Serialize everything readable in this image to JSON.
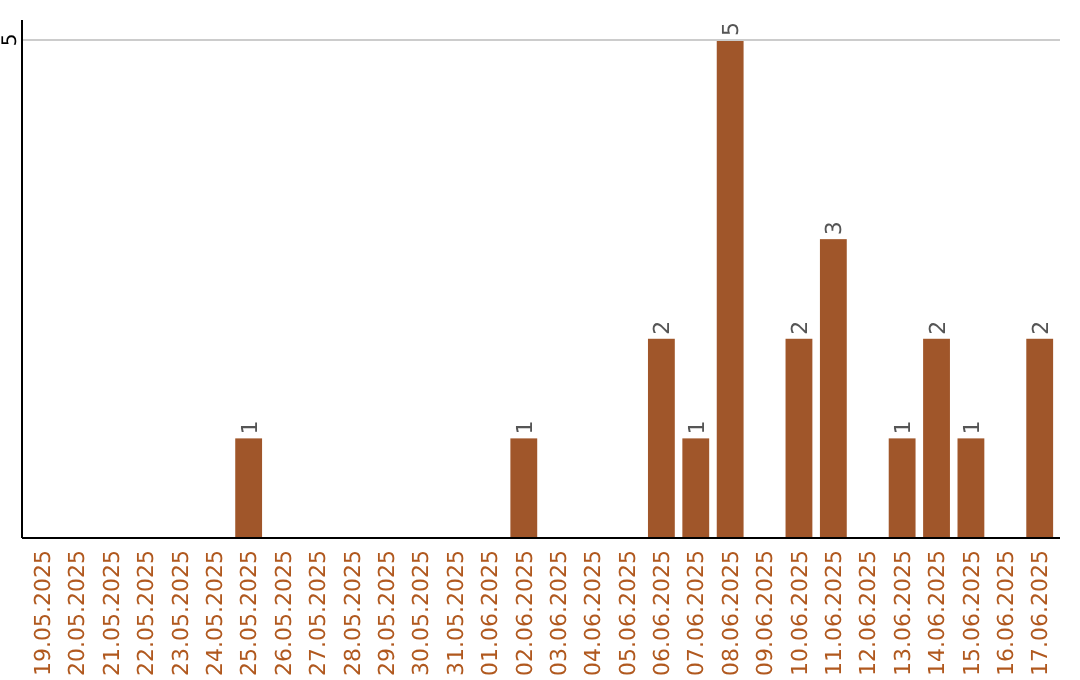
{
  "chart_data": {
    "type": "bar",
    "categories": [
      "19.05.2025",
      "20.05.2025",
      "21.05.2025",
      "22.05.2025",
      "23.05.2025",
      "24.05.2025",
      "25.05.2025",
      "26.05.2025",
      "27.05.2025",
      "28.05.2025",
      "29.05.2025",
      "30.05.2025",
      "31.05.2025",
      "01.06.2025",
      "02.06.2025",
      "03.06.2025",
      "04.06.2025",
      "05.06.2025",
      "06.06.2025",
      "07.06.2025",
      "08.06.2025",
      "09.06.2025",
      "10.06.2025",
      "11.06.2025",
      "12.06.2025",
      "13.06.2025",
      "14.06.2025",
      "15.06.2025",
      "16.06.2025",
      "17.06.2025"
    ],
    "values": [
      0,
      0,
      0,
      0,
      0,
      0,
      1,
      0,
      0,
      0,
      0,
      0,
      0,
      0,
      1,
      0,
      0,
      0,
      2,
      1,
      5,
      0,
      2,
      3,
      0,
      1,
      2,
      1,
      0,
      2
    ],
    "value_labels": [
      null,
      null,
      null,
      null,
      null,
      null,
      "1",
      null,
      null,
      null,
      null,
      null,
      null,
      null,
      "1",
      null,
      null,
      null,
      "2",
      "1",
      "5",
      null,
      "2",
      "3",
      null,
      "1",
      "2",
      "1",
      null,
      "2"
    ],
    "color": "#a0562a",
    "ylim": [
      0,
      5.2
    ],
    "yticks": [
      5
    ],
    "grid": "y"
  }
}
